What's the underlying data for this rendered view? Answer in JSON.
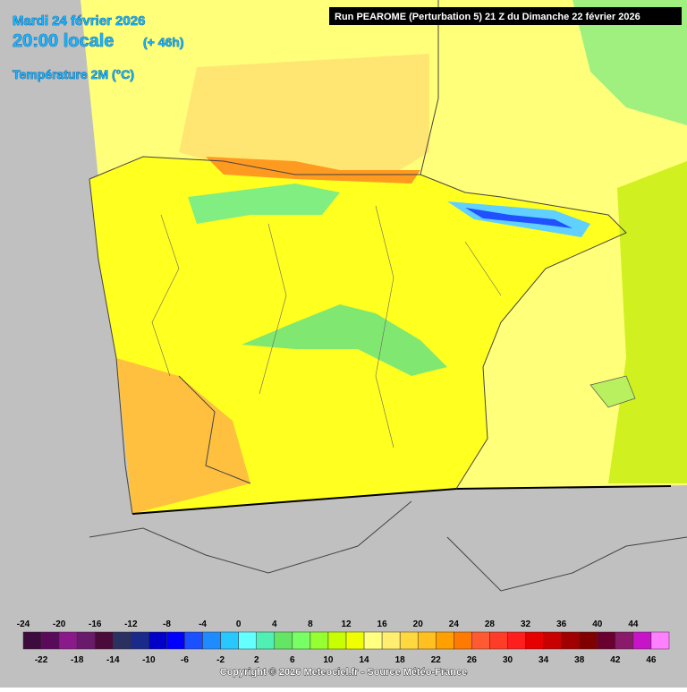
{
  "header": {
    "date": "Mardi 24 février 2026",
    "time": "20:00 locale",
    "lead": "(+ 46h)",
    "parameter": "Température 2M (°C)",
    "run": "Run PEAROME (Perturbation 5) 21 Z du Dimanche 22 février 2026"
  },
  "legend": {
    "ticks": [
      -24,
      -22,
      -20,
      -18,
      -16,
      -14,
      -12,
      -10,
      -8,
      -6,
      -4,
      -2,
      0,
      2,
      4,
      6,
      8,
      10,
      12,
      14,
      16,
      18,
      20,
      22,
      24,
      26,
      28,
      30,
      32,
      34,
      36,
      38,
      40,
      42,
      44,
      46
    ],
    "colors": [
      "#3d0b3d",
      "#5a0a5a",
      "#8a1a8a",
      "#6a1a6a",
      "#4a0a3a",
      "#2a3060",
      "#1a2a8a",
      "#0000c8",
      "#0000ff",
      "#1a50ff",
      "#1e8cff",
      "#28c8ff",
      "#64ffff",
      "#50f0b4",
      "#64e664",
      "#78ff64",
      "#96ff32",
      "#c8ff00",
      "#f0ff00",
      "#ffff80",
      "#ffee70",
      "#ffd840",
      "#ffc020",
      "#ffa000",
      "#ff7a00",
      "#ff5a32",
      "#ff3c28",
      "#ff1e1e",
      "#e60000",
      "#c80000",
      "#a00000",
      "#800000",
      "#6a0030",
      "#8a1a6a",
      "#c814c8",
      "#ff80ff"
    ]
  },
  "footer": {
    "copyright": "Copyright © 2026 Meteociel.fr - Source Météo-France"
  }
}
